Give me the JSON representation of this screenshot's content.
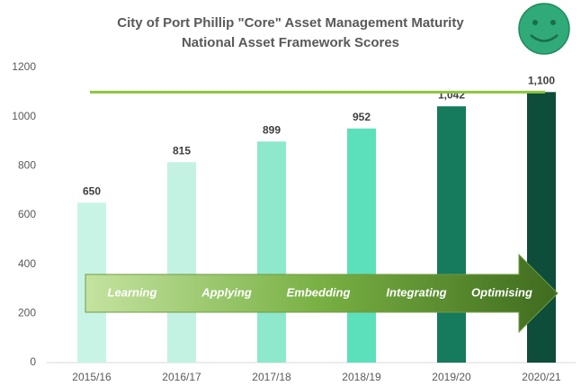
{
  "chart_data": {
    "type": "bar",
    "title": [
      "City of Port Phillip \"Core\" Asset Management Maturity",
      "National Asset Framework Scores"
    ],
    "categories": [
      "2015/16",
      "2016/17",
      "2017/18",
      "2018/19",
      "2019/20",
      "2020/21"
    ],
    "values": [
      650,
      815,
      899,
      952,
      1042,
      1100
    ],
    "value_labels": [
      "650",
      "815",
      "899",
      "952",
      "1,042",
      "1,100"
    ],
    "colors": [
      "#c8f4e6",
      "#c4f2e2",
      "#8ee8cc",
      "#5ce0bc",
      "#167a5c",
      "#0d4d3a"
    ],
    "ylim": [
      0,
      1200
    ],
    "yticks": [
      0,
      200,
      400,
      600,
      800,
      1000,
      1200
    ],
    "grid": false,
    "reference_line": {
      "value": 1100,
      "color": "#8dc63f"
    },
    "stages": [
      "Learning",
      "Applying",
      "Embedding",
      "Integrating",
      "Optimising"
    ]
  }
}
